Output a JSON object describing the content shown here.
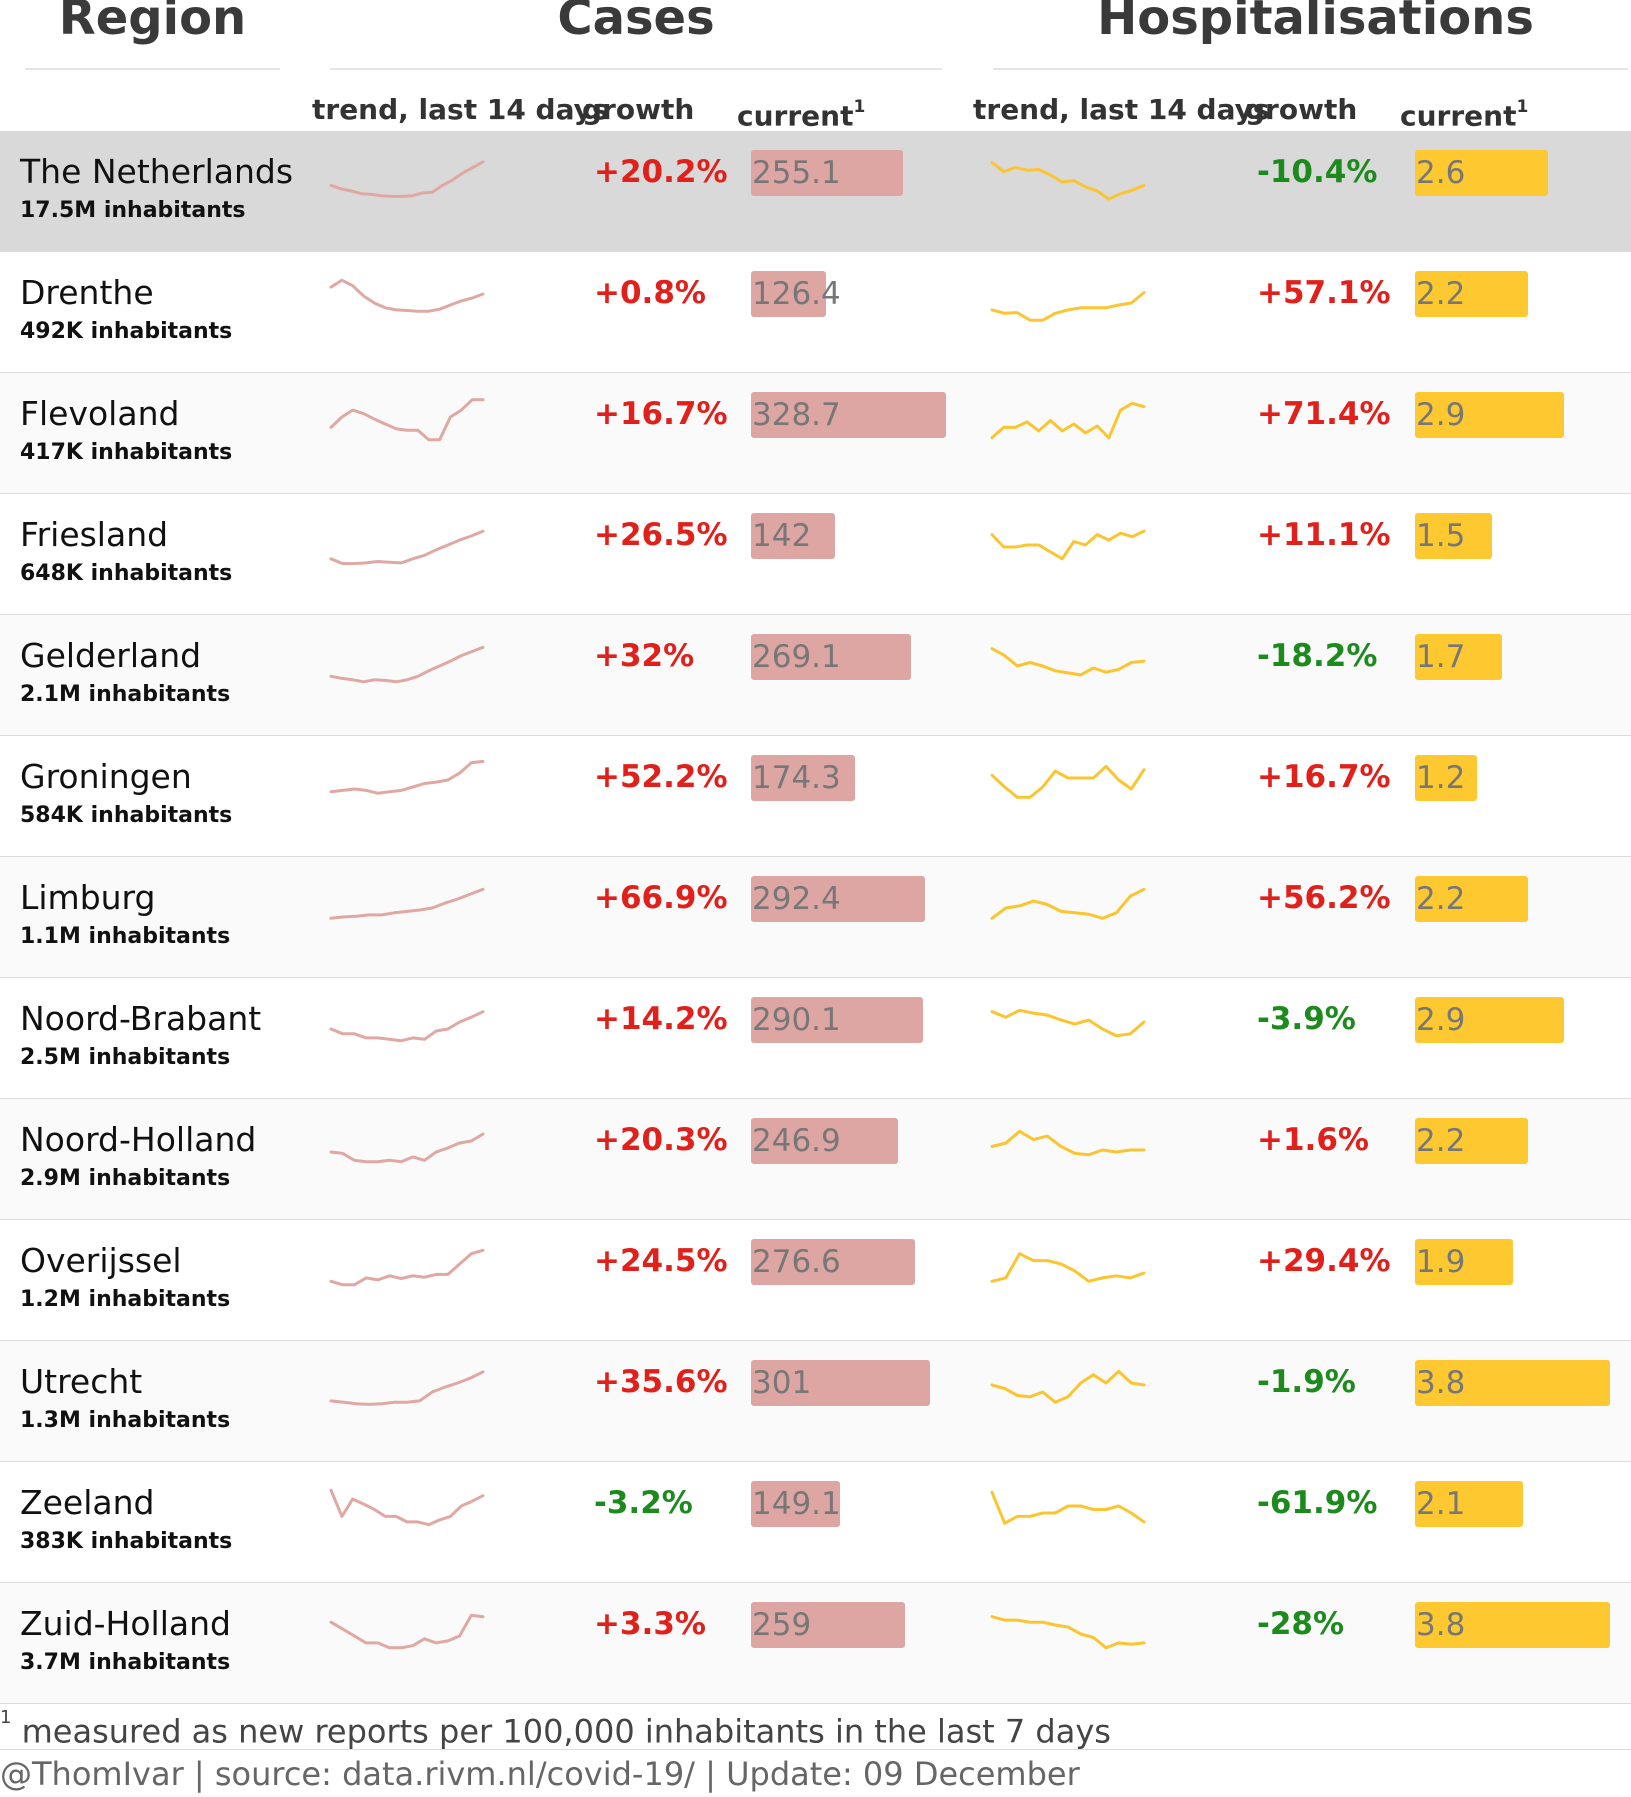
{
  "headers": {
    "region": "Region",
    "cases": "Cases",
    "hospitalisations": "Hospitalisations",
    "trend_cases": "trend, last 14 days",
    "growth_cases": "growth",
    "current_cases": "current",
    "trend_hosp": "trend, last 14 days",
    "growth_hosp": "growth",
    "current_hosp": "current",
    "footnote_mark": "1"
  },
  "colors": {
    "cases_line": "#e0a8a3",
    "cases_bar": "#dea6a3",
    "hosp_line": "#fbc531",
    "hosp_bar": "#fec830",
    "positive_growth": "#e0201b",
    "negative_growth": "#1c8a1c",
    "highlight_row": "#d9d9d9"
  },
  "chart_data": {
    "type": "table",
    "bar_max": {
      "cases": 330,
      "hospitalisations": 3.8
    },
    "rows": [
      {
        "name": "The Netherlands",
        "population": "17.5M inhabitants",
        "highlight": true,
        "cases_trend": [
          40,
          35,
          32,
          28,
          27,
          25,
          24,
          24,
          25,
          29,
          30,
          40,
          48,
          58,
          66,
          74
        ],
        "cases_growth": "+20.2%",
        "cases_current": "255.1",
        "cases_value": 255.1,
        "hosp_trend": [
          73,
          60,
          66,
          62,
          63,
          55,
          45,
          47,
          38,
          32,
          20,
          28,
          33,
          40
        ],
        "hosp_growth": "-10.4%",
        "hosp_current": "2.6",
        "hosp_value": 2.6
      },
      {
        "name": "Drenthe",
        "population": "492K inhabitants",
        "highlight": false,
        "cases_trend": [
          68,
          78,
          70,
          55,
          45,
          38,
          35,
          34,
          33,
          33,
          36,
          42,
          48,
          52,
          58
        ],
        "cases_growth": "+0.8%",
        "cases_current": "126.4",
        "cases_value": 126.4,
        "hosp_trend": [
          35,
          30,
          31,
          20,
          20,
          30,
          35,
          38,
          38,
          38,
          42,
          45,
          60
        ],
        "hosp_growth": "+57.1%",
        "hosp_current": "2.2",
        "hosp_value": 2.2
      },
      {
        "name": "Flevoland",
        "population": "417K inhabitants",
        "highlight": false,
        "cases_trend": [
          40,
          55,
          65,
          60,
          52,
          45,
          38,
          36,
          36,
          22,
          22,
          55,
          65,
          80,
          80
        ],
        "cases_growth": "+16.7%",
        "cases_current": "328.7",
        "cases_value": 328.7,
        "hosp_trend": [
          25,
          40,
          40,
          48,
          35,
          50,
          35,
          45,
          32,
          42,
          25,
          65,
          75,
          70
        ],
        "hosp_growth": "+71.4%",
        "hosp_current": "2.9",
        "hosp_value": 2.9
      },
      {
        "name": "Friesland",
        "population": "648K inhabitants",
        "highlight": false,
        "cases_trend": [
          25,
          18,
          18,
          19,
          21,
          20,
          19,
          25,
          30,
          38,
          45,
          52,
          58,
          65
        ],
        "cases_growth": "+26.5%",
        "cases_current": "142",
        "cases_value": 142,
        "hosp_trend": [
          60,
          42,
          42,
          45,
          45,
          35,
          25,
          50,
          45,
          60,
          52,
          62,
          57,
          65
        ],
        "hosp_growth": "+11.1%",
        "hosp_current": "1.5",
        "hosp_value": 1.5
      },
      {
        "name": "Gelderland",
        "population": "2.1M inhabitants",
        "highlight": false,
        "cases_trend": [
          30,
          27,
          25,
          22,
          25,
          24,
          22,
          25,
          30,
          38,
          45,
          52,
          60,
          66,
          72
        ],
        "cases_growth": "+32%",
        "cases_current": "269.1",
        "cases_value": 269.1,
        "hosp_trend": [
          70,
          60,
          45,
          50,
          45,
          38,
          35,
          32,
          42,
          36,
          40,
          50,
          52
        ],
        "hosp_growth": "-18.2%",
        "hosp_current": "1.7",
        "hosp_value": 1.7
      },
      {
        "name": "Groningen",
        "population": "584K inhabitants",
        "highlight": false,
        "cases_trend": [
          38,
          40,
          42,
          40,
          36,
          38,
          40,
          45,
          50,
          52,
          55,
          65,
          80,
          82
        ],
        "cases_growth": "+52.2%",
        "cases_current": "174.3",
        "cases_value": 174.3,
        "hosp_trend": [
          62,
          45,
          30,
          30,
          45,
          68,
          58,
          58,
          58,
          75,
          55,
          42,
          70
        ],
        "hosp_growth": "+16.7%",
        "hosp_current": "1.2",
        "hosp_value": 1.2
      },
      {
        "name": "Limburg",
        "population": "1.1M inhabitants",
        "highlight": false,
        "cases_trend": [
          30,
          32,
          33,
          35,
          35,
          38,
          40,
          42,
          45,
          52,
          58,
          65,
          72
        ],
        "cases_growth": "+66.9%",
        "cases_current": "292.4",
        "cases_value": 292.4,
        "hosp_trend": [
          30,
          45,
          48,
          55,
          50,
          40,
          38,
          36,
          30,
          38,
          62,
          72
        ],
        "hosp_growth": "+56.2%",
        "hosp_current": "2.2",
        "hosp_value": 2.2
      },
      {
        "name": "Noord-Brabant",
        "population": "2.5M inhabitants",
        "highlight": false,
        "cases_trend": [
          45,
          38,
          38,
          32,
          32,
          30,
          28,
          32,
          30,
          42,
          45,
          55,
          62,
          70
        ],
        "cases_growth": "+14.2%",
        "cases_current": "290.1",
        "cases_value": 290.1,
        "hosp_trend": [
          70,
          62,
          72,
          68,
          65,
          58,
          52,
          58,
          45,
          35,
          38,
          55
        ],
        "hosp_growth": "-3.9%",
        "hosp_current": "2.9",
        "hosp_value": 2.9
      },
      {
        "name": "Noord-Holland",
        "population": "2.9M inhabitants",
        "highlight": false,
        "cases_trend": [
          42,
          40,
          30,
          28,
          28,
          30,
          28,
          35,
          30,
          42,
          48,
          55,
          58,
          68
        ],
        "cases_growth": "+20.3%",
        "cases_current": "246.9",
        "cases_value": 246.9,
        "hosp_trend": [
          50,
          55,
          72,
          60,
          65,
          50,
          40,
          38,
          45,
          42,
          45,
          45
        ],
        "hosp_growth": "+1.6%",
        "hosp_current": "2.2",
        "hosp_value": 2.2
      },
      {
        "name": "Overijssel",
        "population": "1.2M inhabitants",
        "highlight": false,
        "cases_trend": [
          30,
          25,
          25,
          35,
          32,
          38,
          34,
          38,
          36,
          40,
          40,
          55,
          70,
          75
        ],
        "cases_growth": "+24.5%",
        "cases_current": "276.6",
        "cases_value": 276.6,
        "hosp_trend": [
          30,
          35,
          70,
          60,
          60,
          55,
          45,
          30,
          35,
          38,
          35,
          42
        ],
        "hosp_growth": "+29.4%",
        "hosp_current": "1.9",
        "hosp_value": 1.9
      },
      {
        "name": "Utrecht",
        "population": "1.3M inhabitants",
        "highlight": false,
        "cases_trend": [
          32,
          30,
          28,
          27,
          28,
          30,
          30,
          32,
          45,
          52,
          58,
          65,
          74
        ],
        "cases_growth": "+35.6%",
        "cases_current": "301",
        "cases_value": 301,
        "hosp_trend": [
          55,
          50,
          40,
          38,
          45,
          30,
          38,
          58,
          70,
          58,
          75,
          58,
          55
        ],
        "hosp_growth": "-1.9%",
        "hosp_current": "3.8",
        "hosp_value": 3.8
      },
      {
        "name": "Zeeland",
        "population": "383K inhabitants",
        "highlight": false,
        "cases_trend": [
          78,
          40,
          65,
          58,
          50,
          40,
          40,
          32,
          32,
          28,
          35,
          40,
          55,
          62,
          70
        ],
        "cases_growth": "-3.2%",
        "cases_current": "149.1",
        "cases_value": 149.1,
        "hosp_trend": [
          75,
          30,
          40,
          40,
          45,
          45,
          55,
          55,
          50,
          50,
          55,
          45,
          32
        ],
        "hosp_growth": "-61.9%",
        "hosp_current": "2.1",
        "hosp_value": 2.1
      },
      {
        "name": "Zuid-Holland",
        "population": "3.7M inhabitants",
        "highlight": false,
        "cases_trend": [
          62,
          52,
          42,
          32,
          32,
          25,
          25,
          28,
          38,
          32,
          35,
          42,
          72,
          70
        ],
        "cases_growth": "+3.3%",
        "cases_current": "259",
        "cases_value": 259,
        "hosp_trend": [
          70,
          65,
          65,
          62,
          62,
          58,
          55,
          45,
          40,
          25,
          32,
          30,
          32
        ],
        "hosp_growth": "-28%",
        "hosp_current": "3.8",
        "hosp_value": 3.8
      }
    ]
  },
  "footer": {
    "footnote_mark": "1",
    "footnote_text": "measured as new reports per 100,000 inhabitants in the last 7 days",
    "credit": "@ThomIvar | source: data.rivm.nl/covid-19/ | Update: 09 December"
  }
}
